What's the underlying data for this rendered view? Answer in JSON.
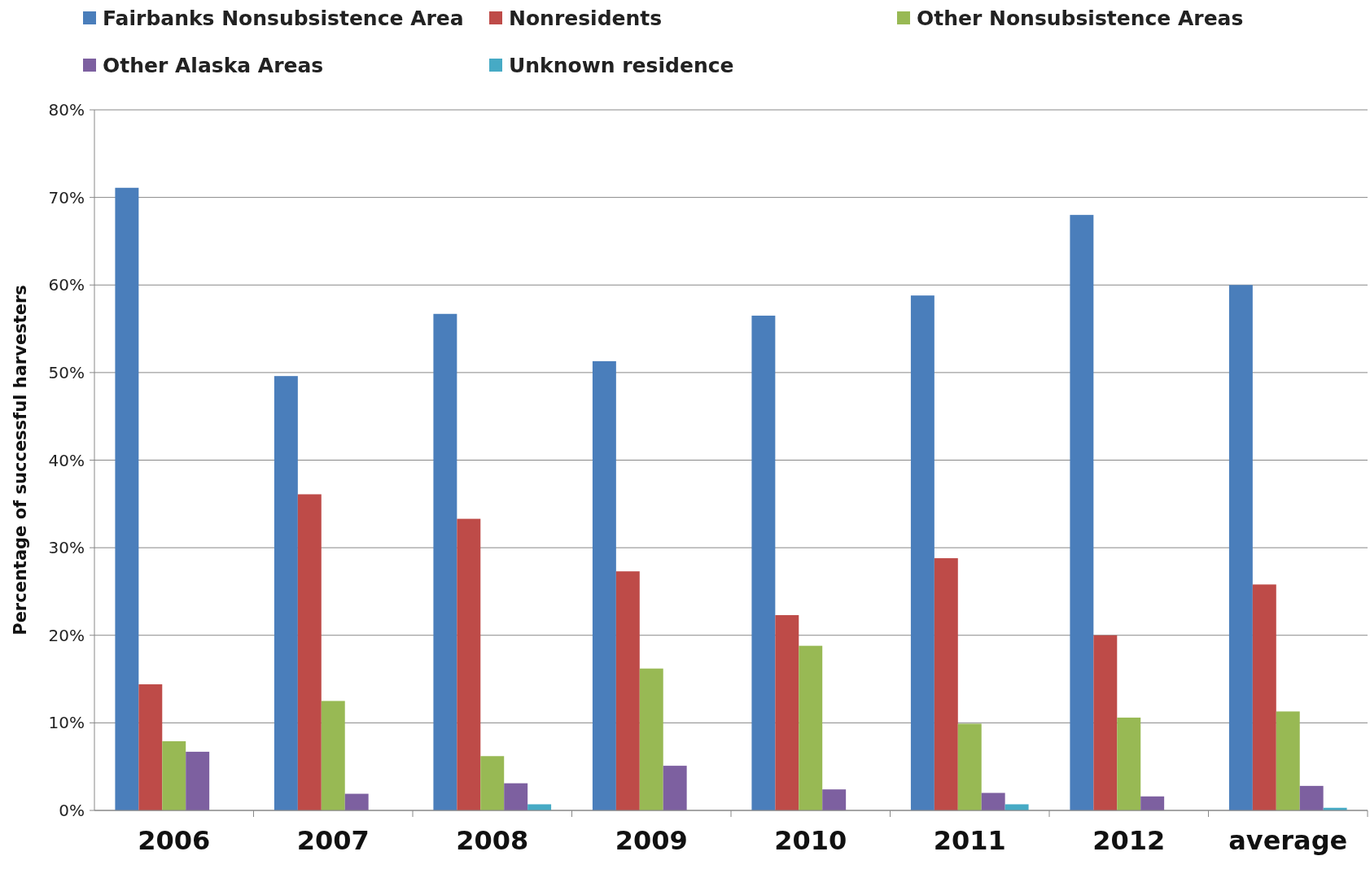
{
  "chart_data": {
    "type": "bar",
    "ylabel": "Percentage of successful harvesters",
    "categories": [
      "2006",
      "2007",
      "2008",
      "2009",
      "2010",
      "2011",
      "2012",
      "average"
    ],
    "series": [
      {
        "name": "Fairbanks Nonsubsistence Area",
        "color": "#4a7ebb",
        "values": [
          71.1,
          49.6,
          56.7,
          51.3,
          56.5,
          58.8,
          68.0,
          60.0
        ]
      },
      {
        "name": "Nonresidents",
        "color": "#be4b48",
        "values": [
          14.4,
          36.1,
          33.3,
          27.3,
          22.3,
          28.8,
          20.0,
          25.8
        ]
      },
      {
        "name": "Other Nonsubsistence Areas",
        "color": "#98b954",
        "values": [
          7.9,
          12.5,
          6.2,
          16.2,
          18.8,
          9.9,
          10.6,
          11.3
        ]
      },
      {
        "name": "Other Alaska Areas",
        "color": "#7d60a0",
        "values": [
          6.7,
          1.9,
          3.1,
          5.1,
          2.4,
          2.0,
          1.6,
          2.8
        ]
      },
      {
        "name": "Unknown residence",
        "color": "#46aac5",
        "values": [
          0,
          0,
          0.7,
          0,
          0,
          0.7,
          0,
          0.3
        ]
      }
    ],
    "ylim": [
      0,
      80
    ],
    "yticks": [
      {
        "value": 0,
        "label": "0%"
      },
      {
        "value": 10,
        "label": "10%"
      },
      {
        "value": 20,
        "label": "20%"
      },
      {
        "value": 30,
        "label": "30%"
      },
      {
        "value": 40,
        "label": "40%"
      },
      {
        "value": 50,
        "label": "50%"
      },
      {
        "value": 60,
        "label": "60%"
      },
      {
        "value": 70,
        "label": "70%"
      },
      {
        "value": 80,
        "label": "80%"
      }
    ],
    "grid": "y",
    "legend": "top"
  }
}
